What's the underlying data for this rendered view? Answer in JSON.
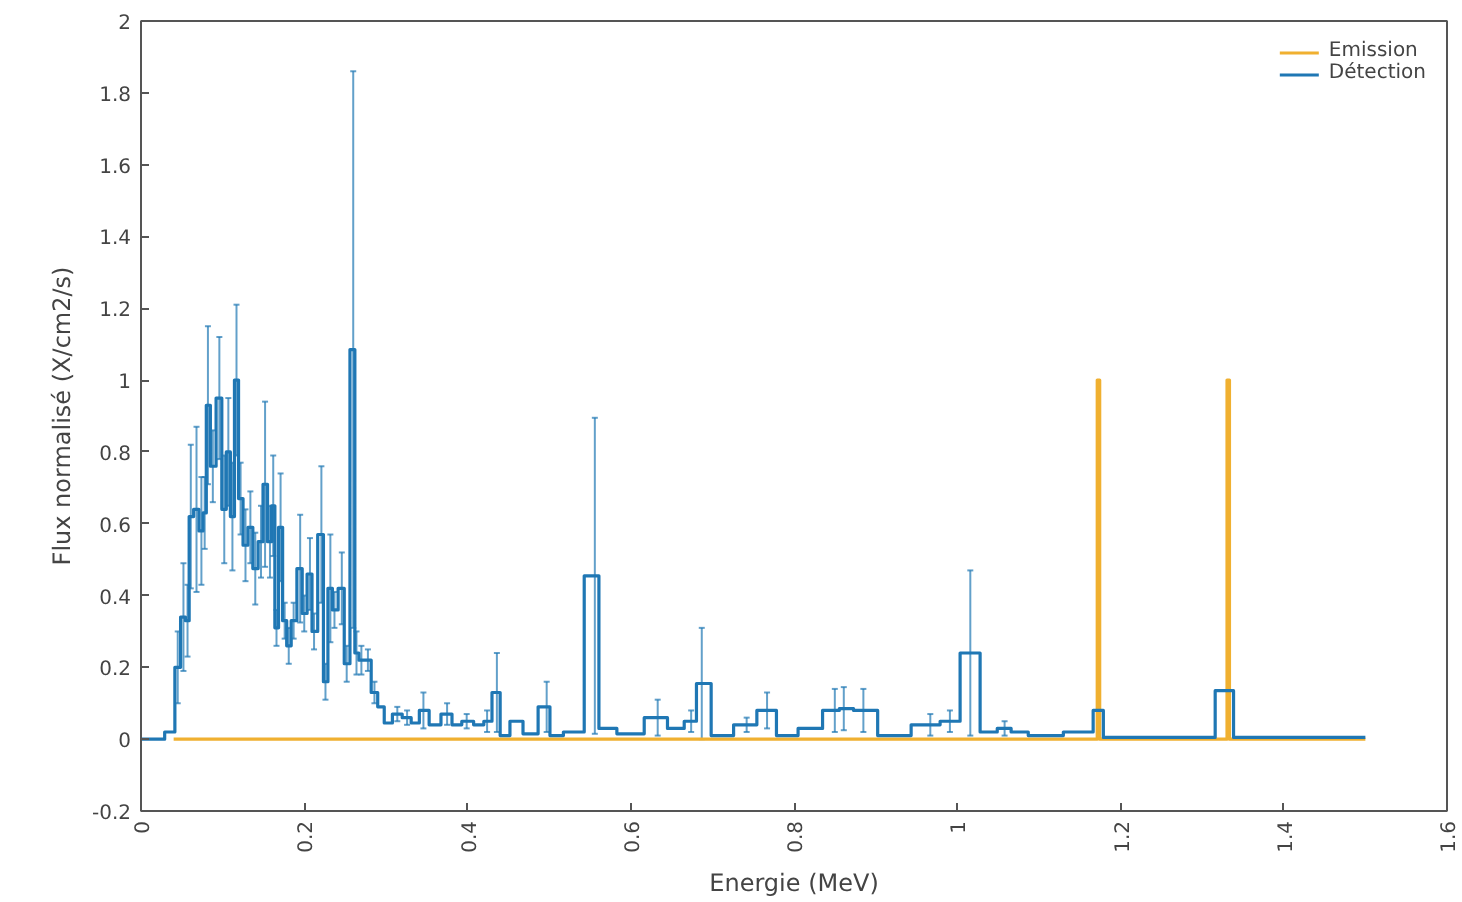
{
  "chart_data": {
    "type": "step",
    "xlabel": "Energie (MeV)",
    "ylabel": "Flux normalisé (X/cm2/s)",
    "xlim": [
      0,
      1.6
    ],
    "xticks": [
      0,
      0.2,
      0.4,
      0.6,
      0.8,
      1,
      1.2,
      1.4,
      1.6
    ],
    "ylim": [
      -0.2,
      2
    ],
    "yticks": [
      -0.2,
      0,
      0.2,
      0.4,
      0.6,
      0.8,
      1,
      1.2,
      1.4,
      1.6,
      1.8,
      2
    ],
    "grid": false,
    "legend": "top right",
    "marker": "none",
    "line_style": "solid",
    "series": [
      {
        "name": "Emission",
        "color": "#f0b030",
        "x": [
          0.04,
          1.17,
          1.173,
          1.176,
          1.329,
          1.332,
          1.335,
          1.5
        ],
        "values": [
          0,
          0,
          1,
          0,
          0,
          1,
          0,
          0
        ]
      },
      {
        "name": "Détection",
        "color": "#1f77b4",
        "x": [
          0,
          0.02,
          0.038,
          0.045,
          0.052,
          0.057,
          0.061,
          0.068,
          0.074,
          0.078,
          0.082,
          0.088,
          0.096,
          0.102,
          0.107,
          0.112,
          0.117,
          0.122,
          0.128,
          0.134,
          0.14,
          0.147,
          0.152,
          0.158,
          0.162,
          0.166,
          0.171,
          0.176,
          0.181,
          0.187,
          0.195,
          0.2,
          0.207,
          0.212,
          0.221,
          0.226,
          0.232,
          0.237,
          0.246,
          0.252,
          0.26,
          0.264,
          0.27,
          0.278,
          0.286,
          0.294,
          0.302,
          0.314,
          0.326,
          0.336,
          0.346,
          0.36,
          0.375,
          0.387,
          0.399,
          0.416,
          0.424,
          0.436,
          0.444,
          0.46,
          0.476,
          0.497,
          0.505,
          0.53,
          0.556,
          0.566,
          0.6,
          0.633,
          0.657,
          0.674,
          0.687,
          0.71,
          0.742,
          0.767,
          0.79,
          0.82,
          0.85,
          0.861,
          0.885,
          0.92,
          0.967,
          0.991,
          1.016,
          1.04,
          1.058,
          1.074,
          1.1,
          1.16,
          1.173,
          1.185,
          1.3,
          1.332,
          1.345,
          1.5
        ],
        "values": [
          0,
          0,
          0.02,
          0.2,
          0.34,
          0.33,
          0.62,
          0.64,
          0.58,
          0.63,
          0.93,
          0.76,
          0.95,
          0.64,
          0.8,
          0.62,
          1.0,
          0.67,
          0.54,
          0.59,
          0.475,
          0.55,
          0.71,
          0.55,
          0.65,
          0.31,
          0.59,
          0.33,
          0.26,
          0.33,
          0.475,
          0.35,
          0.46,
          0.3,
          0.57,
          0.16,
          0.42,
          0.36,
          0.42,
          0.21,
          1.085,
          0.24,
          0.22,
          0.22,
          0.13,
          0.09,
          0.045,
          0.07,
          0.06,
          0.045,
          0.08,
          0.04,
          0.07,
          0.04,
          0.05,
          0.04,
          0.05,
          0.13,
          0.01,
          0.05,
          0.015,
          0.09,
          0.01,
          0.02,
          0.455,
          0.03,
          0.015,
          0.06,
          0.03,
          0.05,
          0.155,
          0.01,
          0.04,
          0.08,
          0.01,
          0.03,
          0.08,
          0.085,
          0.08,
          0.01,
          0.04,
          0.05,
          0.24,
          0.02,
          0.03,
          0.02,
          0.01,
          0.02,
          0.08,
          0.005,
          0.005,
          0.135,
          0.005,
          0.005
        ],
        "errors": [
          null,
          null,
          null,
          0.1,
          0.15,
          0.1,
          0.2,
          0.23,
          0.15,
          0.1,
          0.22,
          0.1,
          0.17,
          0.15,
          0.15,
          0.15,
          0.21,
          0.1,
          0.1,
          0.1,
          0.1,
          0.1,
          0.23,
          0.1,
          0.14,
          0.05,
          0.15,
          0.05,
          0.05,
          0.05,
          0.15,
          0.05,
          0.1,
          0.05,
          0.19,
          0.05,
          0.15,
          0.05,
          0.1,
          0.05,
          0.775,
          0.06,
          0.04,
          0.03,
          0.03,
          null,
          null,
          0.02,
          0.02,
          null,
          0.05,
          null,
          0.03,
          null,
          0.02,
          null,
          0.03,
          0.11,
          null,
          null,
          null,
          0.07,
          null,
          null,
          0.44,
          null,
          null,
          0.05,
          null,
          0.03,
          0.155,
          null,
          0.02,
          0.05,
          null,
          null,
          0.06,
          0.06,
          0.06,
          null,
          0.03,
          0.03,
          0.23,
          null,
          0.02,
          null,
          null,
          null,
          null,
          null,
          null,
          null,
          null,
          null
        ]
      }
    ]
  }
}
